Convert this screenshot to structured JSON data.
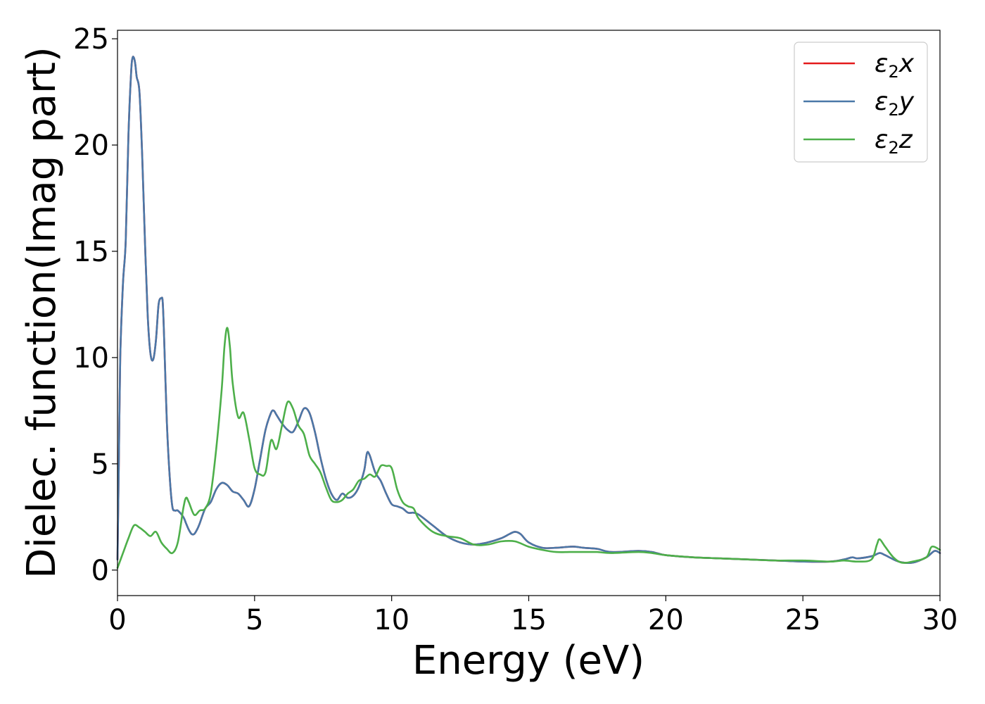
{
  "chart_data": {
    "type": "line",
    "xlabel": "Energy (eV)",
    "ylabel": "Dielec. function(Imag part)",
    "xlim": [
      0,
      30
    ],
    "ylim": [
      -1.2,
      25.4
    ],
    "xticks": [
      0,
      5,
      10,
      15,
      20,
      25,
      30
    ],
    "yticks": [
      0,
      5,
      10,
      15,
      20,
      25
    ],
    "grid": false,
    "legend_position": "top-right",
    "series": [
      {
        "name": "ε₂x",
        "label_base": "ε",
        "label_sub": "2",
        "label_var": "x",
        "color": "#e41a1c",
        "x": [
          0,
          0.05,
          0.1,
          0.2,
          0.3,
          0.4,
          0.5,
          0.55,
          0.6,
          0.65,
          0.7,
          0.8,
          0.9,
          1.0,
          1.1,
          1.2,
          1.3,
          1.4,
          1.5,
          1.6,
          1.65,
          1.7,
          1.8,
          1.9,
          2.0,
          2.1,
          2.2,
          2.4,
          2.5,
          2.6,
          2.7,
          2.8,
          2.9,
          3.0,
          3.2,
          3.4,
          3.6,
          3.8,
          4.0,
          4.2,
          4.4,
          4.6,
          4.8,
          5.0,
          5.2,
          5.4,
          5.6,
          5.7,
          5.8,
          6.0,
          6.2,
          6.4,
          6.6,
          6.8,
          7.0,
          7.2,
          7.4,
          7.6,
          7.8,
          8.0,
          8.2,
          8.4,
          8.6,
          8.8,
          9.0,
          9.1,
          9.2,
          9.4,
          9.6,
          9.8,
          10.0,
          10.2,
          10.4,
          10.6,
          10.8,
          11.0,
          11.5,
          12.0,
          12.5,
          13.0,
          13.5,
          14.0,
          14.3,
          14.5,
          14.7,
          15.0,
          15.5,
          16.0,
          16.5,
          16.7,
          17.0,
          17.5,
          18.0,
          19.0,
          19.5,
          20.0,
          21.0,
          22.0,
          23.0,
          24.0,
          25.0,
          26.0,
          26.5,
          26.8,
          27.0,
          27.5,
          27.8,
          28.0,
          28.5,
          29.0,
          29.5,
          29.8,
          30.0
        ],
        "y": [
          0.5,
          5.0,
          10.0,
          13.5,
          15.5,
          20.5,
          23.5,
          24.1,
          24.1,
          23.8,
          23.2,
          22.5,
          19.5,
          15.5,
          12.0,
          10.2,
          9.9,
          10.8,
          12.5,
          12.8,
          12.6,
          11.0,
          7.0,
          4.5,
          3.0,
          2.8,
          2.8,
          2.5,
          2.2,
          1.9,
          1.7,
          1.7,
          1.9,
          2.2,
          2.9,
          3.2,
          3.8,
          4.1,
          4.0,
          3.7,
          3.6,
          3.3,
          3.0,
          3.8,
          5.2,
          6.6,
          7.4,
          7.5,
          7.3,
          6.9,
          6.6,
          6.5,
          7.0,
          7.6,
          7.4,
          6.5,
          5.3,
          4.3,
          3.6,
          3.3,
          3.6,
          3.4,
          3.5,
          3.9,
          4.7,
          5.5,
          5.4,
          4.6,
          4.2,
          3.6,
          3.1,
          3.0,
          2.9,
          2.7,
          2.7,
          2.6,
          2.1,
          1.6,
          1.3,
          1.2,
          1.3,
          1.5,
          1.7,
          1.8,
          1.7,
          1.3,
          1.05,
          1.05,
          1.1,
          1.1,
          1.05,
          1.0,
          0.85,
          0.9,
          0.85,
          0.7,
          0.6,
          0.55,
          0.5,
          0.45,
          0.4,
          0.4,
          0.5,
          0.6,
          0.55,
          0.65,
          0.8,
          0.7,
          0.4,
          0.35,
          0.6,
          0.9,
          0.8
        ]
      },
      {
        "name": "ε₂y",
        "label_base": "ε",
        "label_sub": "2",
        "label_var": "y",
        "color": "#4a78a8",
        "x": [
          0,
          0.05,
          0.1,
          0.2,
          0.3,
          0.4,
          0.5,
          0.55,
          0.6,
          0.65,
          0.7,
          0.8,
          0.9,
          1.0,
          1.1,
          1.2,
          1.3,
          1.4,
          1.5,
          1.6,
          1.65,
          1.7,
          1.8,
          1.9,
          2.0,
          2.1,
          2.2,
          2.4,
          2.5,
          2.6,
          2.7,
          2.8,
          2.9,
          3.0,
          3.2,
          3.4,
          3.6,
          3.8,
          4.0,
          4.2,
          4.4,
          4.6,
          4.8,
          5.0,
          5.2,
          5.4,
          5.6,
          5.7,
          5.8,
          6.0,
          6.2,
          6.4,
          6.6,
          6.8,
          7.0,
          7.2,
          7.4,
          7.6,
          7.8,
          8.0,
          8.2,
          8.4,
          8.6,
          8.8,
          9.0,
          9.1,
          9.2,
          9.4,
          9.6,
          9.8,
          10.0,
          10.2,
          10.4,
          10.6,
          10.8,
          11.0,
          11.5,
          12.0,
          12.5,
          13.0,
          13.5,
          14.0,
          14.3,
          14.5,
          14.7,
          15.0,
          15.5,
          16.0,
          16.5,
          16.7,
          17.0,
          17.5,
          18.0,
          19.0,
          19.5,
          20.0,
          21.0,
          22.0,
          23.0,
          24.0,
          25.0,
          26.0,
          26.5,
          26.8,
          27.0,
          27.5,
          27.8,
          28.0,
          28.5,
          29.0,
          29.5,
          29.8,
          30.0
        ],
        "y": [
          0.5,
          5.0,
          10.0,
          13.5,
          15.5,
          20.5,
          23.5,
          24.1,
          24.1,
          23.8,
          23.2,
          22.5,
          19.5,
          15.5,
          12.0,
          10.2,
          9.9,
          10.8,
          12.5,
          12.8,
          12.6,
          11.0,
          7.0,
          4.5,
          3.0,
          2.8,
          2.8,
          2.5,
          2.2,
          1.9,
          1.7,
          1.7,
          1.9,
          2.2,
          2.9,
          3.2,
          3.8,
          4.1,
          4.0,
          3.7,
          3.6,
          3.3,
          3.0,
          3.8,
          5.2,
          6.6,
          7.4,
          7.5,
          7.3,
          6.9,
          6.6,
          6.5,
          7.0,
          7.6,
          7.4,
          6.5,
          5.3,
          4.3,
          3.6,
          3.3,
          3.6,
          3.4,
          3.5,
          3.9,
          4.7,
          5.5,
          5.4,
          4.6,
          4.2,
          3.6,
          3.1,
          3.0,
          2.9,
          2.7,
          2.7,
          2.6,
          2.1,
          1.6,
          1.3,
          1.2,
          1.3,
          1.5,
          1.7,
          1.8,
          1.7,
          1.3,
          1.05,
          1.05,
          1.1,
          1.1,
          1.05,
          1.0,
          0.85,
          0.9,
          0.85,
          0.7,
          0.6,
          0.55,
          0.5,
          0.45,
          0.4,
          0.4,
          0.5,
          0.6,
          0.55,
          0.65,
          0.8,
          0.7,
          0.4,
          0.35,
          0.6,
          0.9,
          0.8
        ]
      },
      {
        "name": "ε₂z",
        "label_base": "ε",
        "label_sub": "2",
        "label_var": "z",
        "color": "#4daf4a",
        "x": [
          0,
          0.2,
          0.4,
          0.6,
          0.8,
          1.0,
          1.2,
          1.4,
          1.6,
          1.8,
          2.0,
          2.2,
          2.4,
          2.5,
          2.6,
          2.8,
          3.0,
          3.2,
          3.4,
          3.6,
          3.8,
          3.9,
          4.0,
          4.1,
          4.2,
          4.4,
          4.6,
          4.8,
          5.0,
          5.2,
          5.4,
          5.6,
          5.8,
          6.0,
          6.2,
          6.4,
          6.6,
          6.8,
          7.0,
          7.2,
          7.4,
          7.6,
          7.8,
          8.0,
          8.2,
          8.4,
          8.6,
          8.8,
          9.0,
          9.2,
          9.4,
          9.6,
          9.8,
          10.0,
          10.2,
          10.4,
          10.6,
          10.8,
          11.0,
          11.5,
          12.0,
          12.5,
          13.0,
          13.5,
          14.0,
          14.5,
          15.0,
          15.5,
          16.0,
          16.5,
          17.0,
          17.5,
          18.0,
          19.0,
          19.5,
          20.0,
          21.0,
          22.0,
          23.0,
          24.0,
          25.0,
          26.0,
          26.5,
          27.0,
          27.5,
          27.7,
          27.8,
          28.0,
          28.3,
          28.6,
          29.0,
          29.5,
          29.7,
          30.0
        ],
        "y": [
          0.1,
          0.8,
          1.5,
          2.1,
          2.0,
          1.8,
          1.6,
          1.8,
          1.3,
          1.0,
          0.8,
          1.3,
          2.9,
          3.4,
          3.2,
          2.6,
          2.8,
          2.9,
          3.6,
          5.7,
          8.5,
          10.5,
          11.4,
          10.5,
          8.8,
          7.2,
          7.4,
          6.2,
          4.8,
          4.5,
          4.6,
          6.1,
          5.7,
          6.8,
          7.9,
          7.6,
          6.8,
          6.4,
          5.4,
          5.0,
          4.6,
          3.9,
          3.3,
          3.2,
          3.3,
          3.6,
          3.8,
          4.2,
          4.3,
          4.5,
          4.4,
          4.9,
          4.9,
          4.8,
          3.8,
          3.2,
          3.0,
          2.9,
          2.4,
          1.8,
          1.6,
          1.5,
          1.2,
          1.2,
          1.35,
          1.35,
          1.1,
          0.95,
          0.85,
          0.85,
          0.85,
          0.85,
          0.8,
          0.85,
          0.8,
          0.7,
          0.6,
          0.55,
          0.5,
          0.45,
          0.45,
          0.4,
          0.45,
          0.4,
          0.5,
          1.2,
          1.45,
          1.1,
          0.6,
          0.35,
          0.4,
          0.6,
          1.1,
          0.95
        ]
      }
    ]
  }
}
